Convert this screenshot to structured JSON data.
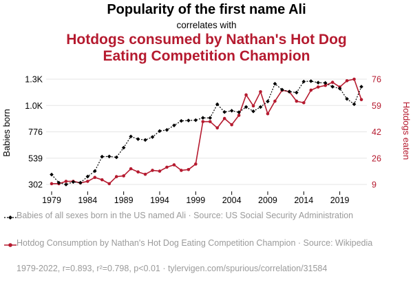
{
  "header": {
    "title": "Popularity of the first name Ali",
    "subtitle": "correlates with",
    "title2": "Hotdogs consumed by Nathan's Hot Dog Eating Competition Champion"
  },
  "colors": {
    "series1": "#000000",
    "series2": "#b51a2f",
    "legend_text": "#9a9a9a"
  },
  "chart_data": {
    "type": "line",
    "x": [
      1979,
      1980,
      1981,
      1982,
      1983,
      1984,
      1985,
      1986,
      1987,
      1988,
      1989,
      1990,
      1991,
      1992,
      1993,
      1994,
      1995,
      1996,
      1997,
      1998,
      1999,
      2000,
      2001,
      2002,
      2003,
      2004,
      2005,
      2006,
      2007,
      2008,
      2009,
      2010,
      2011,
      2012,
      2013,
      2014,
      2015,
      2016,
      2017,
      2018,
      2019,
      2020,
      2021,
      2022
    ],
    "x_ticks": [
      "1979",
      "1984",
      "1989",
      "1994",
      "1999",
      "2004",
      "2009",
      "2014",
      "2019"
    ],
    "xlabel": "",
    "ylabel_left": "Babies born",
    "ylabel_right": "Hotdogs eaten",
    "y_left_ticks": [
      "302",
      "539",
      "776",
      "1.0K",
      "1.3K"
    ],
    "y_right_ticks": [
      "9",
      "26",
      "42",
      "59",
      "76"
    ],
    "ylim_left": [
      302,
      1309
    ],
    "ylim_right": [
      9,
      76
    ],
    "grid": true,
    "series": [
      {
        "name": "Babies born",
        "axis": "left",
        "style": "dotted-black-diamond",
        "values": [
          397,
          319,
          302,
          326,
          319,
          378,
          430,
          568,
          570,
          562,
          654,
          761,
          736,
          728,
          756,
          813,
          824,
          867,
          910,
          914,
          917,
          939,
          939,
          1069,
          995,
          1007,
          993,
          1043,
          1002,
          1043,
          1096,
          1265,
          1208,
          1190,
          1181,
          1286,
          1290,
          1276,
          1273,
          1237,
          1220,
          1120,
          1070,
          1237
        ]
      },
      {
        "name": "Hotdogs eaten",
        "axis": "right",
        "style": "solid-red-circle",
        "values": [
          9.5,
          9.5,
          11,
          11,
          10,
          11,
          13.5,
          12,
          9.5,
          14,
          14.5,
          19,
          17,
          15.5,
          18,
          17.5,
          20,
          21.5,
          18,
          18.5,
          22,
          49,
          49,
          45,
          51,
          47,
          53,
          66,
          59,
          68,
          54,
          62,
          69,
          68,
          62,
          61,
          69,
          71,
          72,
          74,
          71,
          75,
          76,
          63
        ]
      }
    ]
  },
  "legend": {
    "series1": "Babies of all sexes born in the US named Ali · Source: US Social Security Administration",
    "series2": "Hotdog Consumption by Nathan's Hot Dog Eating Competition Champion · Source: Wikipedia"
  },
  "footer": "1979-2022, r=0.893, r²=0.798, p<0.01 · tylervigen.com/spurious/correlation/31584"
}
